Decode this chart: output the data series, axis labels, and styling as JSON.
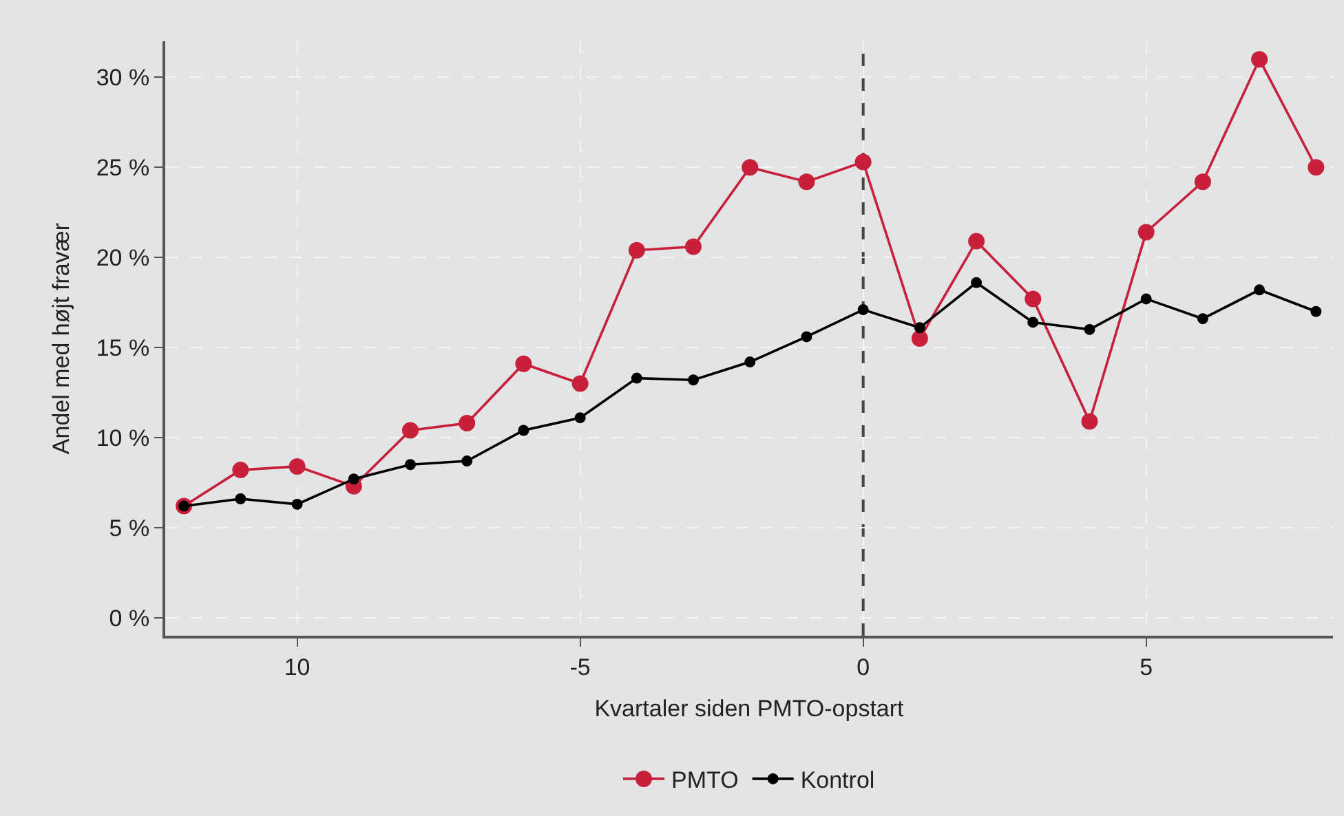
{
  "chart_data": {
    "type": "line",
    "xlabel": "Kvartaler siden PMTO-opstart",
    "ylabel": "Andel med højt fravær",
    "x": [
      -12,
      -11,
      -10,
      -9,
      -8,
      -7,
      -6,
      -5,
      -4,
      -3,
      -2,
      -1,
      0,
      1,
      2,
      3,
      4,
      5,
      6,
      7,
      8
    ],
    "series": [
      {
        "name": "PMTO",
        "color": "#c8203a",
        "values": [
          6.2,
          8.2,
          8.4,
          7.3,
          10.4,
          10.8,
          14.1,
          13.0,
          20.4,
          20.6,
          25.0,
          24.2,
          25.3,
          15.5,
          20.9,
          17.7,
          10.9,
          21.4,
          24.2,
          31.0,
          25.0
        ]
      },
      {
        "name": "Kontrol",
        "color": "#000000",
        "values": [
          6.2,
          6.6,
          6.3,
          7.7,
          8.5,
          8.7,
          10.4,
          11.1,
          13.3,
          13.2,
          14.2,
          15.6,
          17.1,
          16.1,
          18.6,
          16.4,
          16.0,
          17.7,
          16.6,
          18.2,
          17.0
        ]
      }
    ],
    "xlim": [
      -12.33,
      8.3
    ],
    "ylim": [
      -1,
      32
    ],
    "xticks": [
      {
        "value": -10,
        "label": "10"
      },
      -5,
      0,
      5
    ],
    "yticks": [
      {
        "value": 0,
        "label": "0 %"
      },
      {
        "value": 5,
        "label": "5 %"
      },
      {
        "value": 10,
        "label": "10 %"
      },
      {
        "value": 15,
        "label": "15 %"
      },
      {
        "value": 20,
        "label": "20 %"
      },
      {
        "value": 25,
        "label": "25 %"
      },
      {
        "value": 30,
        "label": "30 %"
      }
    ],
    "ref_lines": [
      {
        "axis": "x",
        "value": 0,
        "label": null,
        "color": "#444444",
        "line_style": "dashed"
      }
    ],
    "grid": true,
    "legend": "bottom",
    "marker": "circle",
    "line_style": "solid"
  }
}
